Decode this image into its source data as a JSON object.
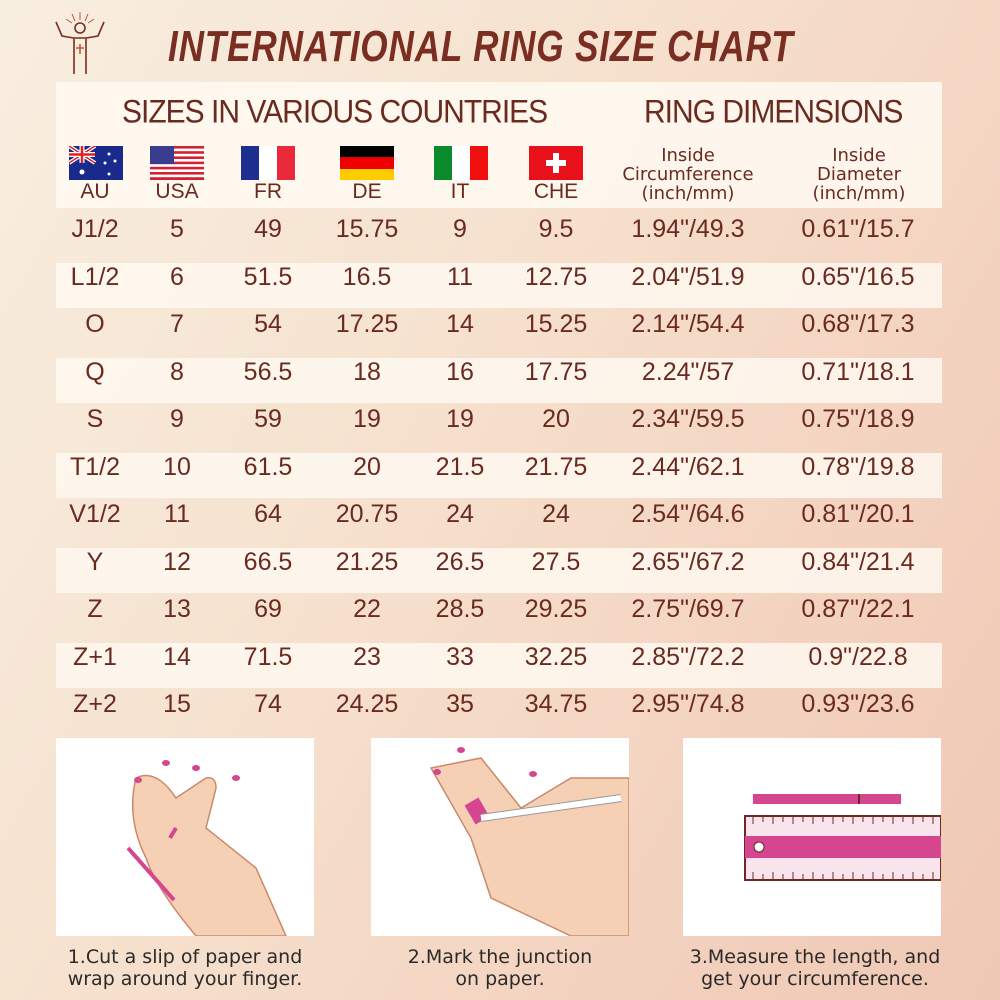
{
  "title": "INTERNATIONAL RING SIZE CHART",
  "logo": "christ-figure-logo",
  "sections": {
    "sizes": "SIZES IN VARIOUS COUNTRIES",
    "dimensions": "RING DIMENSIONS"
  },
  "countries": [
    {
      "code": "AU",
      "flag": "australia-flag"
    },
    {
      "code": "USA",
      "flag": "usa-flag"
    },
    {
      "code": "FR",
      "flag": "france-flag"
    },
    {
      "code": "DE",
      "flag": "germany-flag"
    },
    {
      "code": "IT",
      "flag": "italy-flag"
    },
    {
      "code": "CHE",
      "flag": "switzerland-flag"
    }
  ],
  "dimension_headers": [
    {
      "line1": "Inside",
      "line2": "Circumference",
      "line3": "(inch/mm)"
    },
    {
      "line1": "Inside",
      "line2": "Diameter",
      "line3": "(inch/mm)"
    }
  ],
  "rows": [
    [
      "J1/2",
      "5",
      "49",
      "15.75",
      "9",
      "9.5",
      "1.94\"/49.3",
      "0.61\"/15.7"
    ],
    [
      "L1/2",
      "6",
      "51.5",
      "16.5",
      "11",
      "12.75",
      "2.04\"/51.9",
      "0.65\"/16.5"
    ],
    [
      "O",
      "7",
      "54",
      "17.25",
      "14",
      "15.25",
      "2.14\"/54.4",
      "0.68\"/17.3"
    ],
    [
      "Q",
      "8",
      "56.5",
      "18",
      "16",
      "17.75",
      "2.24\"/57",
      "0.71\"/18.1"
    ],
    [
      "S",
      "9",
      "59",
      "19",
      "19",
      "20",
      "2.34\"/59.5",
      "0.75\"/18.9"
    ],
    [
      "T1/2",
      "10",
      "61.5",
      "20",
      "21.5",
      "21.75",
      "2.44\"/62.1",
      "0.78\"/19.8"
    ],
    [
      "V1/2",
      "11",
      "64",
      "20.75",
      "24",
      "24",
      "2.54\"/64.6",
      "0.81\"/20.1"
    ],
    [
      "Y",
      "12",
      "66.5",
      "21.25",
      "26.5",
      "27.5",
      "2.65\"/67.2",
      "0.84\"/21.4"
    ],
    [
      "Z",
      "13",
      "69",
      "22",
      "28.5",
      "29.25",
      "2.75\"/69.7",
      "0.87\"/22.1"
    ],
    [
      "Z+1",
      "14",
      "71.5",
      "23",
      "33",
      "32.25",
      "2.85\"/72.2",
      "0.9\"/22.8"
    ],
    [
      "Z+2",
      "15",
      "74",
      "24.25",
      "35",
      "34.75",
      "2.95\"/74.8",
      "0.93\"/23.6"
    ]
  ],
  "steps": [
    {
      "line1": "1.Cut a slip of paper and",
      "line2": "wrap around your finger."
    },
    {
      "line1": "2.Mark the junction",
      "line2": "on paper."
    },
    {
      "line1": "3.Measure the length, and",
      "line2": "get your circumference."
    }
  ],
  "colors": {
    "text": "#6a2a1f",
    "accent": "#d6458f"
  }
}
